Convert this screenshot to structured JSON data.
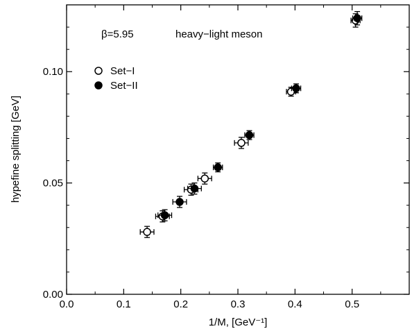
{
  "chart_data": {
    "type": "scatter",
    "title": "",
    "xlabel": "1/M,  [GeV⁻¹]",
    "ylabel": "hypefine splitting [GeV]",
    "xlim": [
      0.0,
      0.6
    ],
    "ylim": [
      0.0,
      0.13
    ],
    "x_ticks": [
      "0.0",
      "0.1",
      "0.2",
      "0.3",
      "0.4",
      "0.5"
    ],
    "y_ticks": [
      "0.00",
      "0.05",
      "0.10"
    ],
    "grid": false,
    "legend_placement": "top-left",
    "annotations": [
      "β=5.95",
      "heavy−light meson"
    ],
    "series": [
      {
        "name": "Set−I",
        "marker": "open-circle",
        "points": [
          {
            "x": 0.141,
            "y": 0.028,
            "xerr": 0.012,
            "yerr": 0.0025
          },
          {
            "x": 0.168,
            "y": 0.035,
            "xerr": 0.012,
            "yerr": 0.0025
          },
          {
            "x": 0.218,
            "y": 0.047,
            "xerr": 0.012,
            "yerr": 0.0025
          },
          {
            "x": 0.242,
            "y": 0.052,
            "xerr": 0.012,
            "yerr": 0.0025
          },
          {
            "x": 0.306,
            "y": 0.068,
            "xerr": 0.012,
            "yerr": 0.0025
          },
          {
            "x": 0.393,
            "y": 0.091,
            "xerr": 0.008,
            "yerr": 0.002
          },
          {
            "x": 0.506,
            "y": 0.123,
            "xerr": 0.008,
            "yerr": 0.003
          }
        ]
      },
      {
        "name": "Set−II",
        "marker": "filled-circle",
        "points": [
          {
            "x": 0.172,
            "y": 0.0355,
            "xerr": 0.012,
            "yerr": 0.0025
          },
          {
            "x": 0.198,
            "y": 0.0415,
            "xerr": 0.012,
            "yerr": 0.0025
          },
          {
            "x": 0.224,
            "y": 0.0475,
            "xerr": 0.012,
            "yerr": 0.0025
          },
          {
            "x": 0.265,
            "y": 0.057,
            "xerr": 0.008,
            "yerr": 0.002
          },
          {
            "x": 0.32,
            "y": 0.0715,
            "xerr": 0.008,
            "yerr": 0.002
          },
          {
            "x": 0.402,
            "y": 0.0925,
            "xerr": 0.008,
            "yerr": 0.002
          },
          {
            "x": 0.509,
            "y": 0.124,
            "xerr": 0.008,
            "yerr": 0.003
          }
        ]
      }
    ]
  }
}
